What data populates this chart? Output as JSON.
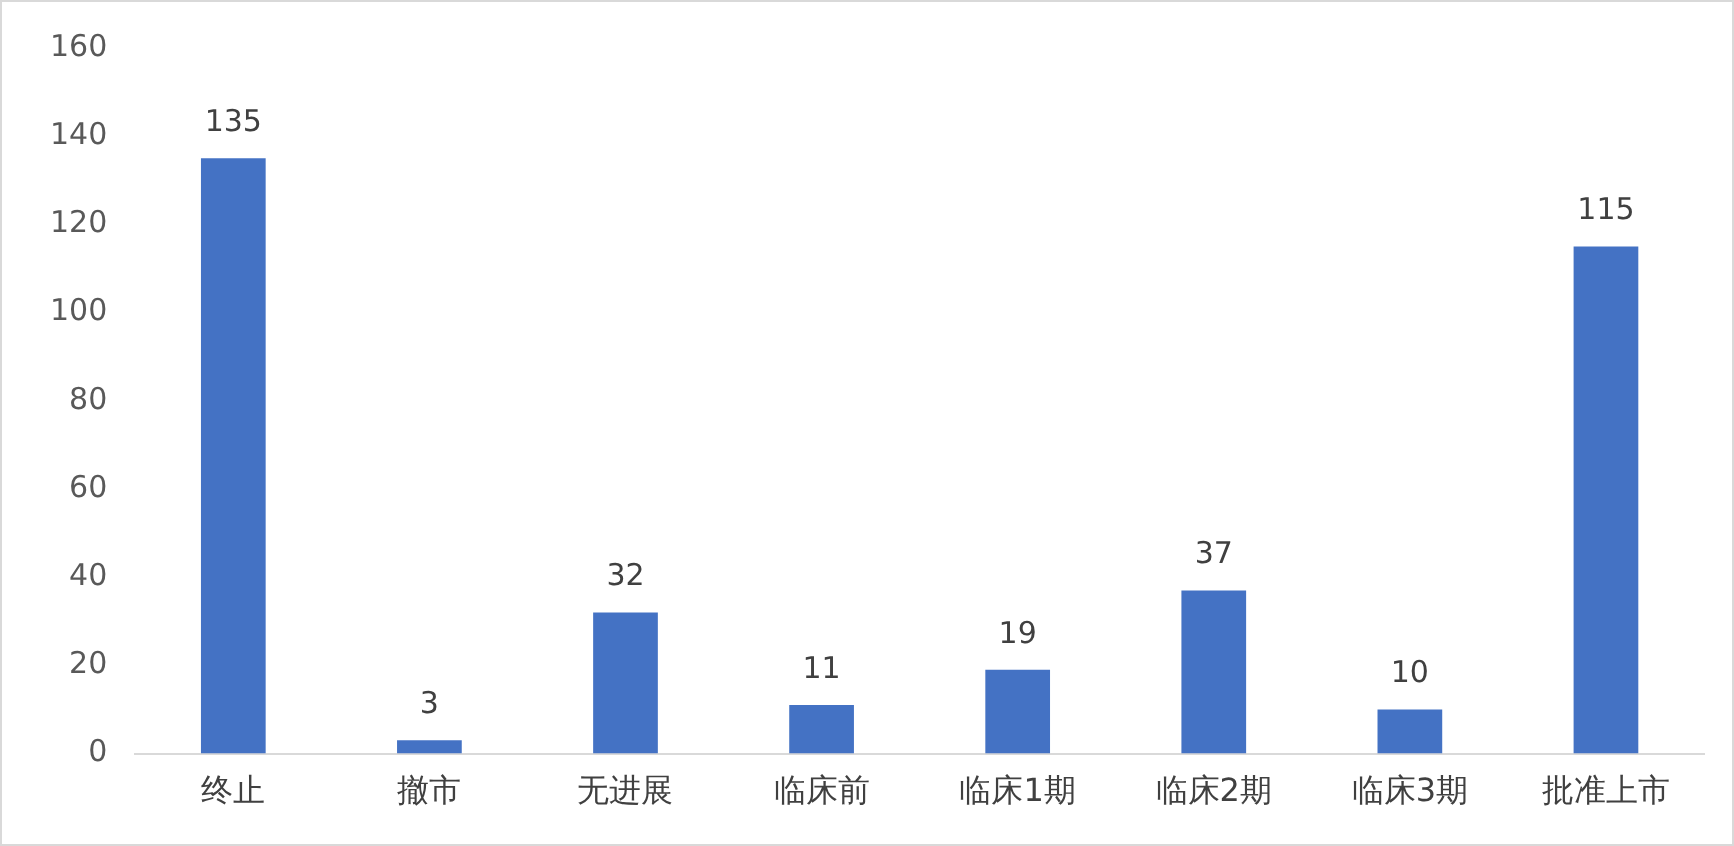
{
  "chart_data": {
    "type": "bar",
    "categories": [
      "终止",
      "撤市",
      "无进展",
      "临床前",
      "临床1期",
      "临床2期",
      "临床3期",
      "批准上市"
    ],
    "values": [
      135,
      3,
      32,
      11,
      19,
      37,
      10,
      115
    ],
    "color": "#4472c4",
    "ylim": [
      0,
      160
    ],
    "yticks": [
      0,
      20,
      40,
      60,
      80,
      100,
      120,
      140,
      160
    ],
    "grid": false,
    "legend": false,
    "data_labels": true
  }
}
